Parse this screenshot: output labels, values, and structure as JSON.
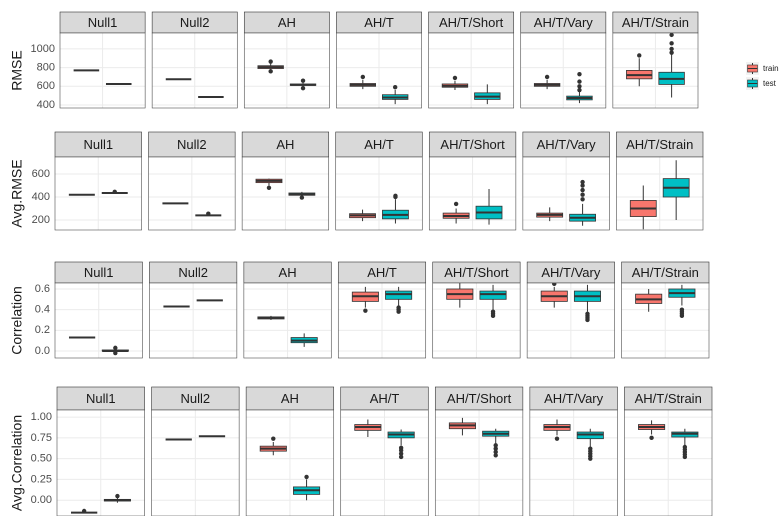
{
  "legend": {
    "series": [
      {
        "name": "train",
        "color": "#F8766D"
      },
      {
        "name": "test",
        "color": "#00BFC4"
      }
    ]
  },
  "chart_data": [
    {
      "type": "box",
      "ylabel": "RMSE",
      "panels": [
        "Null1",
        "Null2",
        "AH",
        "AH/T",
        "AH/T/Short",
        "AH/T/Vary",
        "AH/T/Strain"
      ],
      "ylim": [
        368,
        1170
      ],
      "yticks": [
        400,
        600,
        800,
        1000
      ],
      "grid": true,
      "series": [
        {
          "values": [
            {
              "min": 770,
              "q1": 770,
              "median": 770,
              "q3": 770,
              "max": 770,
              "outliers": []
            },
            {
              "min": 675,
              "q1": 675,
              "median": 675,
              "q3": 675,
              "max": 675,
              "outliers": []
            },
            {
              "min": 780,
              "q1": 790,
              "median": 805,
              "q3": 820,
              "max": 850,
              "outliers": [
                760,
                865
              ]
            },
            {
              "min": 570,
              "q1": 600,
              "median": 615,
              "q3": 630,
              "max": 670,
              "outliers": [
                700
              ]
            },
            {
              "min": 560,
              "q1": 590,
              "median": 605,
              "q3": 625,
              "max": 660,
              "outliers": [
                690
              ]
            },
            {
              "min": 570,
              "q1": 600,
              "median": 615,
              "q3": 630,
              "max": 670,
              "outliers": [
                700
              ]
            },
            {
              "min": 600,
              "q1": 680,
              "median": 720,
              "q3": 770,
              "max": 900,
              "outliers": [
                930
              ]
            }
          ]
        },
        {
          "values": [
            {
              "min": 625,
              "q1": 625,
              "median": 625,
              "q3": 625,
              "max": 625,
              "outliers": []
            },
            {
              "min": 485,
              "q1": 485,
              "median": 485,
              "q3": 485,
              "max": 485,
              "outliers": []
            },
            {
              "min": 595,
              "q1": 610,
              "median": 615,
              "q3": 625,
              "max": 640,
              "outliers": [
                580,
                660
              ]
            },
            {
              "min": 410,
              "q1": 460,
              "median": 480,
              "q3": 510,
              "max": 560,
              "outliers": [
                590
              ]
            },
            {
              "min": 410,
              "q1": 460,
              "median": 490,
              "q3": 530,
              "max": 620,
              "outliers": []
            },
            {
              "min": 420,
              "q1": 455,
              "median": 475,
              "q3": 495,
              "max": 540,
              "outliers": [
                560,
                600,
                650,
                730
              ]
            },
            {
              "min": 480,
              "q1": 620,
              "median": 680,
              "q3": 750,
              "max": 940,
              "outliers": [
                960,
                1000,
                1060,
                1150
              ]
            }
          ]
        }
      ]
    },
    {
      "type": "box",
      "ylabel": "Avg.RMSE",
      "panels": [
        "Null1",
        "Null2",
        "AH",
        "AH/T",
        "AH/T/Short",
        "AH/T/Vary",
        "AH/T/Strain"
      ],
      "ylim": [
        113,
        748
      ],
      "yticks": [
        200,
        400,
        600
      ],
      "grid": true,
      "series": [
        {
          "values": [
            {
              "min": 420,
              "q1": 420,
              "median": 420,
              "q3": 420,
              "max": 420,
              "outliers": []
            },
            {
              "min": 345,
              "q1": 345,
              "median": 345,
              "q3": 345,
              "max": 345,
              "outliers": []
            },
            {
              "min": 500,
              "q1": 525,
              "median": 540,
              "q3": 555,
              "max": 560,
              "outliers": [
                480
              ]
            },
            {
              "min": 190,
              "q1": 220,
              "median": 240,
              "q3": 255,
              "max": 290,
              "outliers": []
            },
            {
              "min": 170,
              "q1": 215,
              "median": 235,
              "q3": 260,
              "max": 300,
              "outliers": [
                340
              ]
            },
            {
              "min": 190,
              "q1": 225,
              "median": 245,
              "q3": 260,
              "max": 310,
              "outliers": []
            },
            {
              "min": 120,
              "q1": 230,
              "median": 300,
              "q3": 370,
              "max": 500,
              "outliers": []
            }
          ]
        },
        {
          "values": [
            {
              "min": 435,
              "q1": 435,
              "median": 435,
              "q3": 435,
              "max": 435,
              "outliers": [
                445
              ]
            },
            {
              "min": 240,
              "q1": 240,
              "median": 240,
              "q3": 240,
              "max": 240,
              "outliers": [
                255
              ]
            },
            {
              "min": 400,
              "q1": 415,
              "median": 425,
              "q3": 435,
              "max": 445,
              "outliers": [
                395
              ]
            },
            {
              "min": 170,
              "q1": 210,
              "median": 245,
              "q3": 285,
              "max": 380,
              "outliers": [
                400,
                410
              ]
            },
            {
              "min": 160,
              "q1": 210,
              "median": 265,
              "q3": 320,
              "max": 470,
              "outliers": []
            },
            {
              "min": 150,
              "q1": 190,
              "median": 220,
              "q3": 250,
              "max": 340,
              "outliers": [
                380,
                420,
                460,
                500,
                530
              ]
            },
            {
              "min": 200,
              "q1": 400,
              "median": 480,
              "q3": 560,
              "max": 720,
              "outliers": []
            }
          ]
        }
      ]
    },
    {
      "type": "box",
      "ylabel": "Correlation",
      "panels": [
        "Null1",
        "Null2",
        "AH",
        "AH/T",
        "AH/T/Short",
        "AH/T/Vary",
        "AH/T/Strain"
      ],
      "ylim": [
        -0.068,
        0.658
      ],
      "yticks": [
        {
          "value": 0,
          "label": "0.0"
        },
        0.2,
        0.4,
        0.6
      ],
      "grid": true,
      "series": [
        {
          "values": [
            {
              "min": 0.13,
              "q1": 0.13,
              "median": 0.13,
              "q3": 0.13,
              "max": 0.13,
              "outliers": []
            },
            {
              "min": 0.43,
              "q1": 0.43,
              "median": 0.43,
              "q3": 0.43,
              "max": 0.43,
              "outliers": []
            },
            {
              "min": 0.3,
              "q1": 0.31,
              "median": 0.32,
              "q3": 0.33,
              "max": 0.34,
              "outliers": []
            },
            {
              "min": 0.42,
              "q1": 0.48,
              "median": 0.53,
              "q3": 0.57,
              "max": 0.62,
              "outliers": [
                0.39
              ]
            },
            {
              "min": 0.42,
              "q1": 0.5,
              "median": 0.55,
              "q3": 0.6,
              "max": 0.66,
              "outliers": []
            },
            {
              "min": 0.42,
              "q1": 0.48,
              "median": 0.53,
              "q3": 0.58,
              "max": 0.62,
              "outliers": [
                0.65
              ]
            },
            {
              "min": 0.38,
              "q1": 0.46,
              "median": 0.5,
              "q3": 0.55,
              "max": 0.6,
              "outliers": []
            }
          ]
        },
        {
          "values": [
            {
              "min": -0.01,
              "q1": 0,
              "median": 0,
              "q3": 0.01,
              "max": 0.02,
              "outliers": [
                -0.02,
                0.03
              ]
            },
            {
              "min": 0.49,
              "q1": 0.49,
              "median": 0.49,
              "q3": 0.49,
              "max": 0.49,
              "outliers": []
            },
            {
              "min": 0.04,
              "q1": 0.08,
              "median": 0.1,
              "q3": 0.13,
              "max": 0.17,
              "outliers": []
            },
            {
              "min": 0.44,
              "q1": 0.5,
              "median": 0.55,
              "q3": 0.58,
              "max": 0.62,
              "outliers": [
                0.38,
                0.4,
                0.42
              ]
            },
            {
              "min": 0.4,
              "q1": 0.5,
              "median": 0.55,
              "q3": 0.58,
              "max": 0.64,
              "outliers": [
                0.34,
                0.36,
                0.38
              ]
            },
            {
              "min": 0.38,
              "q1": 0.48,
              "median": 0.53,
              "q3": 0.58,
              "max": 0.64,
              "outliers": [
                0.3,
                0.32,
                0.34,
                0.36
              ]
            },
            {
              "min": 0.44,
              "q1": 0.52,
              "median": 0.56,
              "q3": 0.6,
              "max": 0.64,
              "outliers": [
                0.34,
                0.36,
                0.38,
                0.4
              ]
            }
          ]
        }
      ]
    },
    {
      "type": "box",
      "ylabel": "Avg.Correlation",
      "panels": [
        "Null1",
        "Null2",
        "AH",
        "AH/T",
        "AH/T/Short",
        "AH/T/Vary",
        "AH/T/Strain"
      ],
      "ylim": [
        -0.19,
        1.085
      ],
      "yticks": [
        {
          "value": 0,
          "label": "0.00"
        },
        0.25,
        {
          "value": 0.5,
          "label": "0.50"
        },
        0.75,
        {
          "value": 1,
          "label": "1.00"
        }
      ],
      "grid": true,
      "series": [
        {
          "values": [
            {
              "min": -0.15,
              "q1": -0.15,
              "median": -0.15,
              "q3": -0.15,
              "max": -0.15,
              "outliers": [
                -0.13
              ]
            },
            {
              "min": 0.73,
              "q1": 0.73,
              "median": 0.73,
              "q3": 0.73,
              "max": 0.73,
              "outliers": []
            },
            {
              "min": 0.54,
              "q1": 0.59,
              "median": 0.62,
              "q3": 0.65,
              "max": 0.7,
              "outliers": [
                0.74
              ]
            },
            {
              "min": 0.76,
              "q1": 0.84,
              "median": 0.88,
              "q3": 0.91,
              "max": 0.97,
              "outliers": []
            },
            {
              "min": 0.78,
              "q1": 0.86,
              "median": 0.9,
              "q3": 0.93,
              "max": 0.99,
              "outliers": []
            },
            {
              "min": 0.78,
              "q1": 0.84,
              "median": 0.88,
              "q3": 0.91,
              "max": 0.97,
              "outliers": [
                0.74
              ]
            },
            {
              "min": 0.79,
              "q1": 0.85,
              "median": 0.88,
              "q3": 0.91,
              "max": 0.96,
              "outliers": [
                0.75
              ]
            }
          ]
        },
        {
          "values": [
            {
              "min": -0.03,
              "q1": -0.01,
              "median": 0,
              "q3": 0.01,
              "max": 0.03,
              "outliers": [
                0.05
              ]
            },
            {
              "min": 0.77,
              "q1": 0.77,
              "median": 0.77,
              "q3": 0.77,
              "max": 0.77,
              "outliers": []
            },
            {
              "min": 0,
              "q1": 0.07,
              "median": 0.12,
              "q3": 0.16,
              "max": 0.25,
              "outliers": [
                0.28
              ]
            },
            {
              "min": 0.66,
              "q1": 0.75,
              "median": 0.79,
              "q3": 0.82,
              "max": 0.85,
              "outliers": [
                0.52,
                0.56,
                0.6,
                0.63
              ]
            },
            {
              "min": 0.68,
              "q1": 0.77,
              "median": 0.8,
              "q3": 0.83,
              "max": 0.86,
              "outliers": [
                0.54,
                0.58,
                0.62,
                0.66
              ]
            },
            {
              "min": 0.64,
              "q1": 0.74,
              "median": 0.79,
              "q3": 0.82,
              "max": 0.86,
              "outliers": [
                0.5,
                0.53,
                0.56,
                0.59,
                0.62
              ]
            },
            {
              "min": 0.66,
              "q1": 0.76,
              "median": 0.8,
              "q3": 0.82,
              "max": 0.86,
              "outliers": [
                0.52,
                0.55,
                0.58,
                0.61,
                0.64
              ]
            }
          ]
        }
      ]
    }
  ]
}
